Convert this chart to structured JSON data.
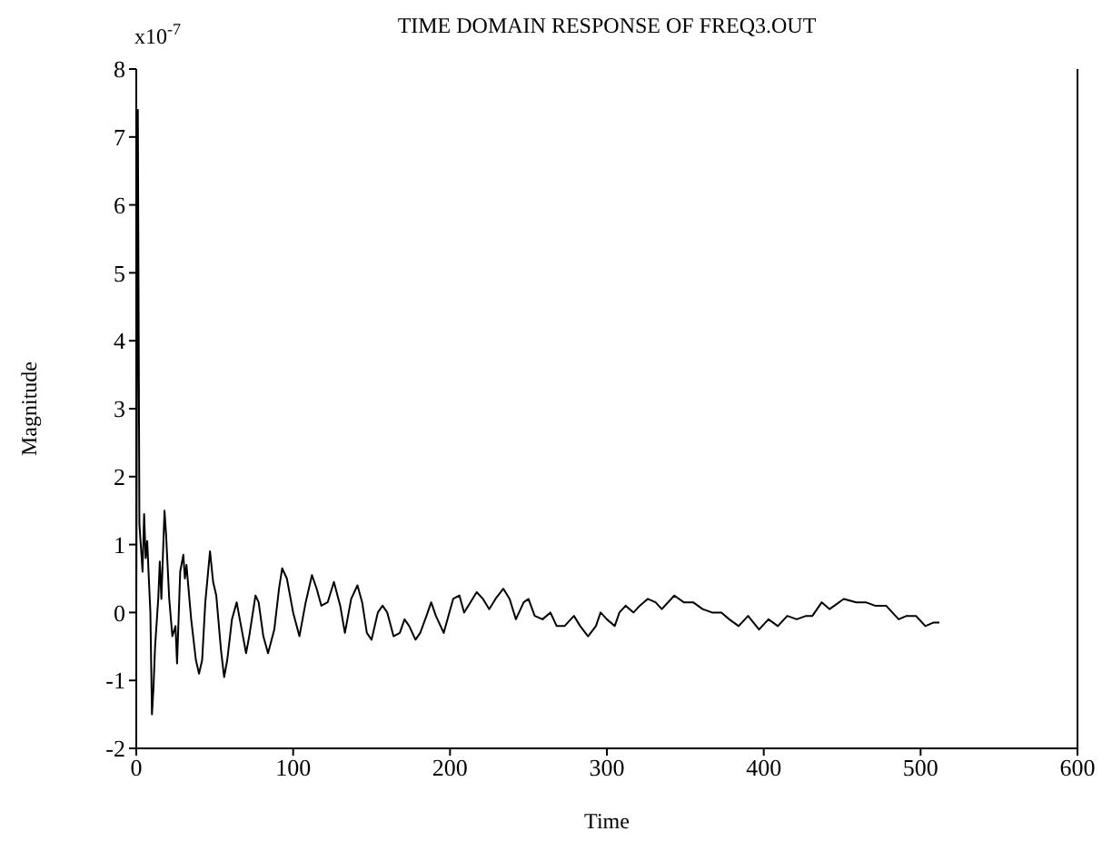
{
  "chart_data": {
    "type": "line",
    "title": "TIME DOMAIN RESPONSE OF FREQ3.OUT",
    "xlabel": "Time",
    "ylabel": "Magnitude",
    "annotations": [
      "x10$^{-7}$"
    ],
    "xlim": [
      0,
      600
    ],
    "xticks": [
      0,
      100,
      200,
      300,
      400,
      500,
      600
    ],
    "ylim": [
      -2,
      8
    ],
    "yticks": [
      -2,
      -1,
      0,
      1,
      2,
      3,
      4,
      5,
      6,
      7,
      8
    ],
    "grid": false,
    "legend": false,
    "marker": "none",
    "line_style": "solid",
    "series": [
      {
        "color": "#000000",
        "x": [
          0,
          1,
          2,
          4,
          5,
          6,
          7,
          8,
          9,
          10,
          11,
          12,
          14,
          15,
          16,
          18,
          19,
          21,
          23,
          25,
          26,
          28,
          30,
          31,
          32,
          35,
          38,
          40,
          42,
          44,
          47,
          49,
          51,
          54,
          56,
          58,
          61,
          64,
          68,
          70,
          72,
          76,
          78,
          81,
          84,
          88,
          91,
          93,
          96,
          100,
          104,
          108,
          112,
          115,
          118,
          122,
          126,
          130,
          133,
          137,
          141,
          144,
          147,
          150,
          154,
          157,
          160,
          164,
          168,
          171,
          174,
          178,
          181,
          185,
          188,
          191,
          196,
          202,
          206,
          209,
          213,
          217,
          221,
          225,
          229,
          234,
          238,
          242,
          247,
          250,
          254,
          259,
          264,
          268,
          273,
          279,
          283,
          288,
          293,
          296,
          300,
          305,
          308,
          312,
          317,
          321,
          326,
          331,
          335,
          343,
          349,
          355,
          361,
          367,
          373,
          378,
          384,
          390,
          397,
          403,
          409,
          415,
          421,
          427,
          431,
          437,
          442,
          451,
          459,
          465,
          471,
          478,
          486,
          491,
          497,
          503,
          508,
          512
        ],
        "values": [
          0,
          7.4,
          1.3,
          0.6,
          1.45,
          0.8,
          1.05,
          0.5,
          0,
          -1.5,
          -1.1,
          -0.5,
          0.2,
          0.75,
          0.2,
          1.5,
          1.15,
          0.2,
          -0.35,
          -0.2,
          -0.75,
          0.6,
          0.85,
          0.5,
          0.7,
          -0.1,
          -0.7,
          -0.9,
          -0.7,
          0.15,
          0.9,
          0.45,
          0.25,
          -0.55,
          -0.95,
          -0.7,
          -0.1,
          0.15,
          -0.35,
          -0.6,
          -0.35,
          0.25,
          0.15,
          -0.35,
          -0.6,
          -0.25,
          0.35,
          0.65,
          0.5,
          0,
          -0.35,
          0.15,
          0.55,
          0.35,
          0.1,
          0.15,
          0.45,
          0.1,
          -0.3,
          0.2,
          0.4,
          0.15,
          -0.3,
          -0.4,
          0,
          0.1,
          0,
          -0.35,
          -0.3,
          -0.1,
          -0.2,
          -0.4,
          -0.3,
          -0.05,
          0.15,
          -0.05,
          -0.3,
          0.2,
          0.25,
          0,
          0.15,
          0.3,
          0.2,
          0.05,
          0.2,
          0.35,
          0.2,
          -0.1,
          0.15,
          0.2,
          -0.05,
          -0.1,
          0,
          -0.2,
          -0.2,
          -0.05,
          -0.2,
          -0.35,
          -0.2,
          0,
          -0.1,
          -0.2,
          0,
          0.1,
          0,
          0.1,
          0.2,
          0.15,
          0.05,
          0.25,
          0.15,
          0.15,
          0.05,
          0,
          0,
          -0.1,
          -0.2,
          -0.05,
          -0.25,
          -0.1,
          -0.2,
          -0.05,
          -0.1,
          -0.05,
          -0.05,
          0.15,
          0.05,
          0.2,
          0.15,
          0.15,
          0.1,
          0.1,
          -0.1,
          -0.05,
          -0.05,
          -0.2,
          -0.15,
          -0.15
        ]
      }
    ]
  }
}
